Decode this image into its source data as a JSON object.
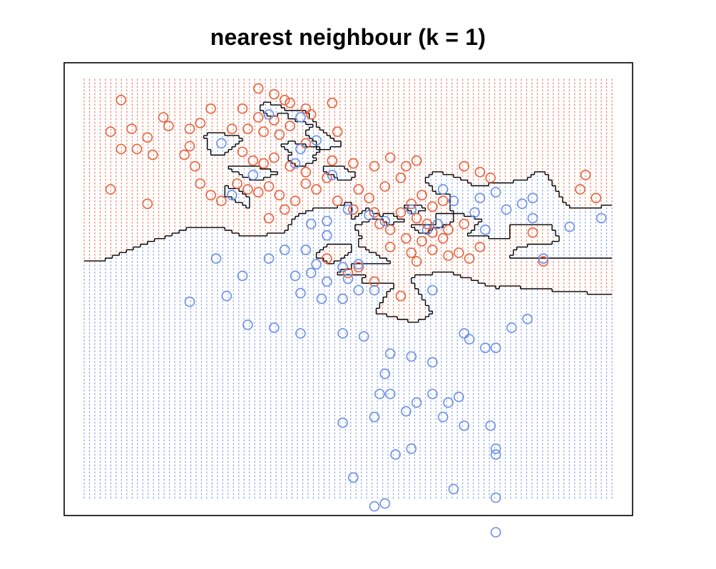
{
  "chart_data": {
    "type": "scatter",
    "title": "nearest neighbour (k = 1)",
    "xlabel": "",
    "ylabel": "",
    "axes_visible": false,
    "grid": "dotted prediction grid over the plot region",
    "colors": {
      "orange": "#e8603c",
      "blue": "#6a8ee6",
      "boundary": "#000000"
    },
    "series": [
      {
        "class": "orange",
        "color": "#e8603c",
        "points": [
          [
            0.07,
            0.93
          ],
          [
            0.15,
            0.87
          ],
          [
            0.05,
            0.82
          ],
          [
            0.09,
            0.83
          ],
          [
            0.12,
            0.8
          ],
          [
            0.16,
            0.84
          ],
          [
            0.07,
            0.76
          ],
          [
            0.1,
            0.76
          ],
          [
            0.13,
            0.74
          ],
          [
            0.05,
            0.62
          ],
          [
            0.12,
            0.57
          ],
          [
            0.2,
            0.77
          ],
          [
            0.24,
            0.9
          ],
          [
            0.22,
            0.85
          ],
          [
            0.2,
            0.83
          ],
          [
            0.19,
            0.74
          ],
          [
            0.21,
            0.7
          ],
          [
            0.22,
            0.64
          ],
          [
            0.24,
            0.6
          ],
          [
            0.33,
            0.97
          ],
          [
            0.36,
            0.95
          ],
          [
            0.38,
            0.93
          ],
          [
            0.39,
            0.92
          ],
          [
            0.42,
            0.9
          ],
          [
            0.47,
            0.92
          ],
          [
            0.3,
            0.9
          ],
          [
            0.33,
            0.87
          ],
          [
            0.36,
            0.86
          ],
          [
            0.39,
            0.84
          ],
          [
            0.43,
            0.88
          ],
          [
            0.28,
            0.83
          ],
          [
            0.31,
            0.83
          ],
          [
            0.34,
            0.82
          ],
          [
            0.37,
            0.81
          ],
          [
            0.42,
            0.78
          ],
          [
            0.48,
            0.82
          ],
          [
            0.3,
            0.75
          ],
          [
            0.32,
            0.72
          ],
          [
            0.34,
            0.71
          ],
          [
            0.36,
            0.73
          ],
          [
            0.39,
            0.7
          ],
          [
            0.42,
            0.68
          ],
          [
            0.47,
            0.72
          ],
          [
            0.51,
            0.71
          ],
          [
            0.55,
            0.7
          ],
          [
            0.58,
            0.73
          ],
          [
            0.61,
            0.7
          ],
          [
            0.63,
            0.72
          ],
          [
            0.29,
            0.64
          ],
          [
            0.31,
            0.62
          ],
          [
            0.33,
            0.61
          ],
          [
            0.35,
            0.63
          ],
          [
            0.37,
            0.6
          ],
          [
            0.4,
            0.58
          ],
          [
            0.42,
            0.64
          ],
          [
            0.44,
            0.62
          ],
          [
            0.46,
            0.66
          ],
          [
            0.48,
            0.58
          ],
          [
            0.52,
            0.62
          ],
          [
            0.54,
            0.59
          ],
          [
            0.57,
            0.63
          ],
          [
            0.6,
            0.66
          ],
          [
            0.62,
            0.57
          ],
          [
            0.64,
            0.6
          ],
          [
            0.66,
            0.56
          ],
          [
            0.68,
            0.58
          ],
          [
            0.6,
            0.54
          ],
          [
            0.63,
            0.52
          ],
          [
            0.65,
            0.5
          ],
          [
            0.55,
            0.54
          ],
          [
            0.51,
            0.55
          ],
          [
            0.58,
            0.48
          ],
          [
            0.61,
            0.45
          ],
          [
            0.64,
            0.44
          ],
          [
            0.66,
            0.47
          ],
          [
            0.62,
            0.4
          ],
          [
            0.58,
            0.42
          ],
          [
            0.66,
            0.41
          ],
          [
            0.69,
            0.39
          ],
          [
            0.71,
            0.4
          ],
          [
            0.73,
            0.38
          ],
          [
            0.69,
            0.48
          ],
          [
            0.72,
            0.5
          ],
          [
            0.35,
            0.52
          ],
          [
            0.38,
            0.55
          ],
          [
            0.26,
            0.58
          ],
          [
            0.5,
            0.33
          ],
          [
            0.52,
            0.35
          ],
          [
            0.72,
            0.7
          ],
          [
            0.75,
            0.68
          ],
          [
            0.77,
            0.66
          ],
          [
            0.85,
            0.47
          ],
          [
            0.94,
            0.62
          ],
          [
            0.95,
            0.67
          ],
          [
            0.97,
            0.59
          ],
          [
            0.87,
            0.37
          ],
          [
            0.68,
            0.45
          ],
          [
            0.63,
            0.37
          ],
          [
            0.75,
            0.42
          ],
          [
            0.55,
            0.3
          ],
          [
            0.6,
            0.25
          ],
          [
            0.46,
            0.38
          ],
          [
            0.56,
            0.5
          ]
        ]
      },
      {
        "class": "blue",
        "color": "#6a8ee6",
        "points": [
          [
            0.26,
            0.78
          ],
          [
            0.32,
            0.67
          ],
          [
            0.28,
            0.6
          ],
          [
            0.35,
            0.88
          ],
          [
            0.41,
            0.87
          ],
          [
            0.44,
            0.79
          ],
          [
            0.41,
            0.76
          ],
          [
            0.4,
            0.71
          ],
          [
            0.47,
            0.67
          ],
          [
            0.46,
            0.51
          ],
          [
            0.5,
            0.55
          ],
          [
            0.54,
            0.53
          ],
          [
            0.57,
            0.51
          ],
          [
            0.43,
            0.5
          ],
          [
            0.46,
            0.46
          ],
          [
            0.42,
            0.41
          ],
          [
            0.38,
            0.41
          ],
          [
            0.35,
            0.38
          ],
          [
            0.44,
            0.36
          ],
          [
            0.43,
            0.33
          ],
          [
            0.4,
            0.32
          ],
          [
            0.46,
            0.3
          ],
          [
            0.49,
            0.35
          ],
          [
            0.52,
            0.36
          ],
          [
            0.5,
            0.31
          ],
          [
            0.52,
            0.27
          ],
          [
            0.55,
            0.27
          ],
          [
            0.49,
            0.24
          ],
          [
            0.45,
            0.24
          ],
          [
            0.41,
            0.26
          ],
          [
            0.3,
            0.32
          ],
          [
            0.27,
            0.25
          ],
          [
            0.2,
            0.23
          ],
          [
            0.25,
            0.38
          ],
          [
            0.31,
            0.15
          ],
          [
            0.36,
            0.14
          ],
          [
            0.41,
            0.12
          ],
          [
            0.49,
            0.12
          ],
          [
            0.53,
            0.11
          ],
          [
            0.58,
            0.05
          ],
          [
            0.62,
            0.04
          ],
          [
            0.66,
            0.02
          ],
          [
            0.57,
            -0.02
          ],
          [
            0.56,
            -0.09
          ],
          [
            0.58,
            -0.09
          ],
          [
            0.63,
            -0.12
          ],
          [
            0.66,
            -0.09
          ],
          [
            0.69,
            -0.12
          ],
          [
            0.71,
            -0.1
          ],
          [
            0.73,
            0.1
          ],
          [
            0.76,
            0.07
          ],
          [
            0.78,
            0.07
          ],
          [
            0.72,
            0.12
          ],
          [
            0.81,
            0.14
          ],
          [
            0.84,
            0.17
          ],
          [
            0.68,
            -0.17
          ],
          [
            0.72,
            -0.2
          ],
          [
            0.77,
            -0.2
          ],
          [
            0.78,
            -0.28
          ],
          [
            0.62,
            -0.28
          ],
          [
            0.55,
            -0.17
          ],
          [
            0.61,
            -0.15
          ],
          [
            0.49,
            -0.19
          ],
          [
            0.59,
            -0.3
          ],
          [
            0.66,
            0.27
          ],
          [
            0.65,
            0.48
          ],
          [
            0.68,
            0.62
          ],
          [
            0.7,
            0.58
          ],
          [
            0.74,
            0.54
          ],
          [
            0.78,
            0.61
          ],
          [
            0.85,
            0.59
          ],
          [
            0.87,
            0.38
          ],
          [
            0.92,
            0.49
          ],
          [
            0.98,
            0.52
          ],
          [
            0.76,
            0.48
          ],
          [
            0.75,
            0.59
          ],
          [
            0.8,
            0.55
          ],
          [
            0.83,
            0.57
          ],
          [
            0.85,
            0.52
          ],
          [
            0.78,
            -0.3
          ],
          [
            0.78,
            -0.45
          ],
          [
            0.7,
            -0.42
          ],
          [
            0.78,
            -0.57
          ],
          [
            0.55,
            -0.48
          ],
          [
            0.51,
            -0.38
          ],
          [
            0.57,
            -0.47
          ],
          [
            0.67,
            0.5
          ],
          [
            0.62,
            0.55
          ]
        ]
      }
    ]
  }
}
